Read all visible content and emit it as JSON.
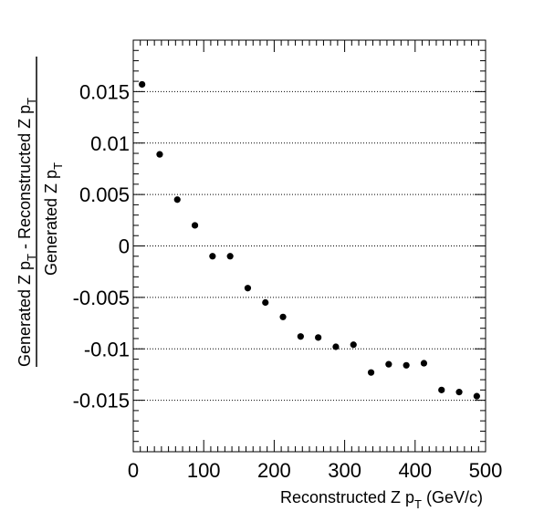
{
  "chart_data": {
    "type": "scatter",
    "xlabel": {
      "main": "Reconstructed Z p",
      "subscript": "T",
      "suffix": " (GeV/c)"
    },
    "ylabel": {
      "numerator": {
        "part1": "Generated Z p",
        "sub1": "T",
        "part2": " - Reconstructed Z p",
        "sub2": "T"
      },
      "denominator": {
        "main": "Generated Z p",
        "subscript": "T"
      }
    },
    "xlim": [
      0,
      500
    ],
    "ylim": [
      -0.02,
      0.02
    ],
    "x_ticks": [
      0,
      100,
      200,
      300,
      400,
      500
    ],
    "x_tick_labels": [
      "0",
      "100",
      "200",
      "300",
      "400",
      "500"
    ],
    "y_ticks": [
      -0.015,
      -0.01,
      -0.005,
      0,
      0.005,
      0.01,
      0.015
    ],
    "y_tick_labels": [
      "-0.015",
      "-0.01",
      "-0.005",
      "0",
      "0.005",
      "0.01",
      "0.015"
    ],
    "grid": "horizontal dotted at major y ticks",
    "marker_color": "#000000",
    "points": [
      {
        "x": 12.5,
        "y": 0.0157
      },
      {
        "x": 37.5,
        "y": 0.0089
      },
      {
        "x": 62.5,
        "y": 0.0045
      },
      {
        "x": 87.5,
        "y": 0.002
      },
      {
        "x": 112.5,
        "y": -0.001
      },
      {
        "x": 137.5,
        "y": -0.001
      },
      {
        "x": 162.5,
        "y": -0.0041
      },
      {
        "x": 187.5,
        "y": -0.0055
      },
      {
        "x": 212.5,
        "y": -0.0069
      },
      {
        "x": 237.5,
        "y": -0.0088
      },
      {
        "x": 262.5,
        "y": -0.0089
      },
      {
        "x": 287.5,
        "y": -0.0098
      },
      {
        "x": 312.5,
        "y": -0.0096
      },
      {
        "x": 337.5,
        "y": -0.0123
      },
      {
        "x": 362.5,
        "y": -0.0115
      },
      {
        "x": 387.5,
        "y": -0.0116
      },
      {
        "x": 412.5,
        "y": -0.0114
      },
      {
        "x": 437.5,
        "y": -0.014
      },
      {
        "x": 462.5,
        "y": -0.0142
      },
      {
        "x": 487.5,
        "y": -0.0146
      }
    ]
  }
}
